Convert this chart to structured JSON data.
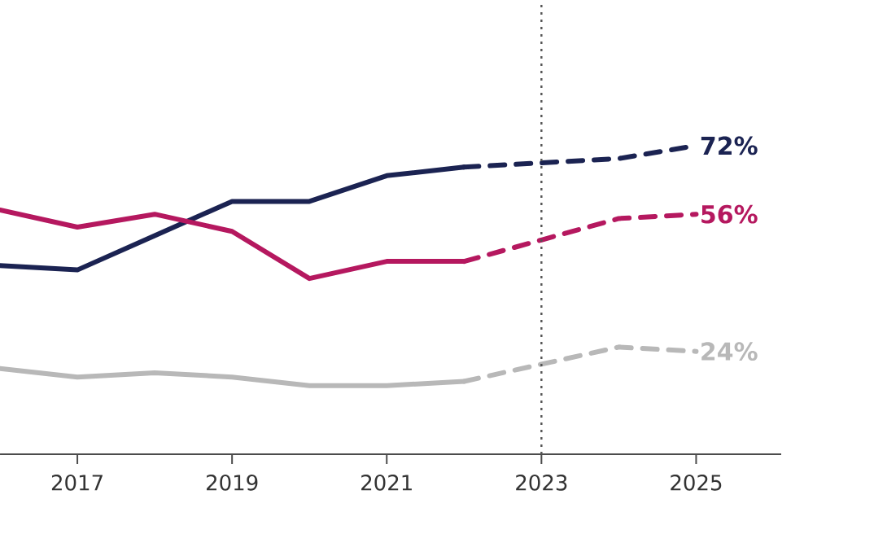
{
  "chart_data": {
    "type": "line",
    "xlim": [
      2016,
      2026.1
    ],
    "xticks": [
      2017,
      2019,
      2021,
      2023,
      2025
    ],
    "ylim": [
      0,
      106
    ],
    "series": [
      {
        "color": "#1b2352",
        "line_style": "solid",
        "x": [
          2016,
          2017,
          2018,
          2019,
          2020,
          2021,
          2022
        ],
        "values": [
          44,
          43,
          51,
          59,
          59,
          65,
          67
        ]
      },
      {
        "color": "#1b2352",
        "line_style": "dashed",
        "x": [
          2022,
          2023,
          2024,
          2025
        ],
        "values": [
          67,
          68,
          69,
          72
        ],
        "value_labels": [
          null,
          null,
          null,
          "72%"
        ]
      },
      {
        "color": "#b5185f",
        "line_style": "solid",
        "x": [
          2016,
          2017,
          2018,
          2019,
          2020,
          2021,
          2022
        ],
        "values": [
          57,
          53,
          56,
          52,
          41,
          45,
          45
        ]
      },
      {
        "color": "#b5185f",
        "line_style": "dashed",
        "x": [
          2022,
          2023,
          2024,
          2025
        ],
        "values": [
          45,
          50,
          55,
          56
        ],
        "value_labels": [
          null,
          null,
          null,
          "56%"
        ]
      },
      {
        "color": "#b8b8b8",
        "line_style": "solid",
        "x": [
          2016,
          2017,
          2018,
          2019,
          2020,
          2021,
          2022
        ],
        "values": [
          20,
          18,
          19,
          18,
          16,
          16,
          17
        ]
      },
      {
        "color": "#b8b8b8",
        "line_style": "dashed",
        "x": [
          2022,
          2023,
          2024,
          2025
        ],
        "values": [
          17,
          21,
          25,
          24
        ],
        "value_labels": [
          null,
          null,
          null,
          "24%"
        ]
      }
    ],
    "ref_lines": [
      {
        "axis": "x",
        "value": 2023,
        "color": "#555555",
        "line_style": "dotted"
      }
    ]
  }
}
